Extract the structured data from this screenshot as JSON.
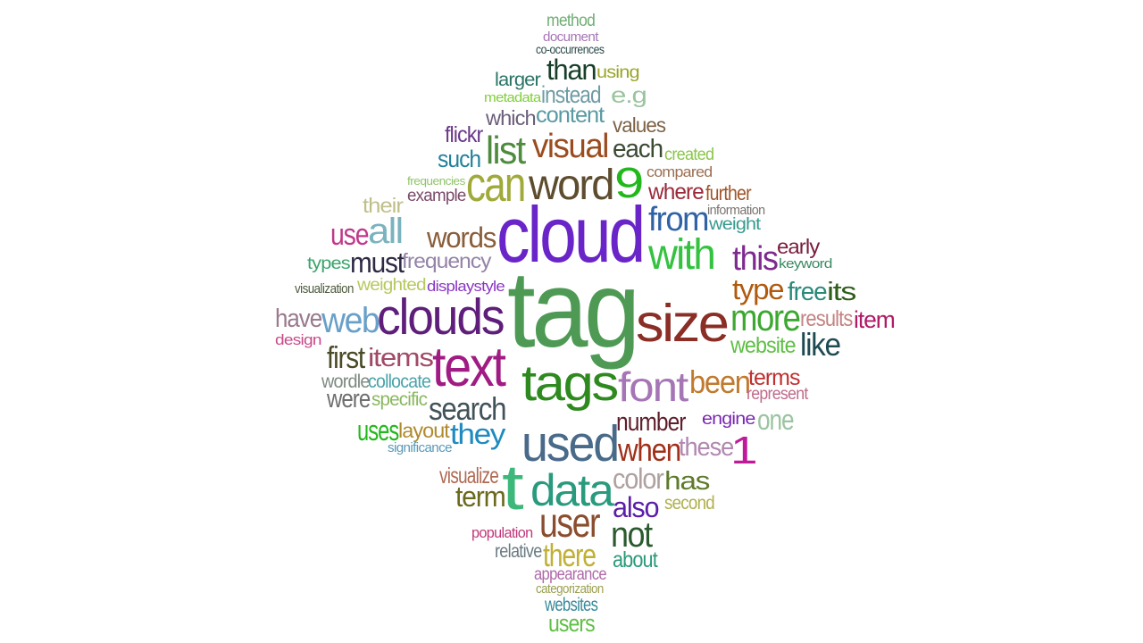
{
  "word_cloud": {
    "words": [
      {
        "text": "method",
        "color": "#6fae73"
      },
      {
        "text": "document",
        "color": "#a675b6"
      },
      {
        "text": "co-occurrences",
        "color": "#2b4a4a"
      },
      {
        "text": "than",
        "color": "#173f2a"
      },
      {
        "text": "using",
        "color": "#9aa52a"
      },
      {
        "text": "larger",
        "color": "#2a7566"
      },
      {
        "text": "metadata",
        "color": "#7fcf3a"
      },
      {
        "text": "instead",
        "color": "#6f9ba6"
      },
      {
        "text": "e.g",
        "color": "#9ac49e"
      },
      {
        "text": "which",
        "color": "#6b5e7b"
      },
      {
        "text": "content",
        "color": "#5a9aa2"
      },
      {
        "text": "values",
        "color": "#7c6146"
      },
      {
        "text": "flickr",
        "color": "#6a3a8a"
      },
      {
        "text": "list",
        "color": "#4e8b3e"
      },
      {
        "text": "visual",
        "color": "#9a4c1f"
      },
      {
        "text": "each",
        "color": "#3a4a33"
      },
      {
        "text": "created",
        "color": "#8bc64a"
      },
      {
        "text": "such",
        "color": "#24819a"
      },
      {
        "text": "can",
        "color": "#a0aa3a"
      },
      {
        "text": "word",
        "color": "#5e4c2e"
      },
      {
        "text": "9",
        "color": "#22b81d"
      },
      {
        "text": "compared",
        "color": "#9c6f52"
      },
      {
        "text": "frequencies",
        "color": "#91c46a"
      },
      {
        "text": "example",
        "color": "#7b4a6a"
      },
      {
        "text": "where",
        "color": "#9a2a3a"
      },
      {
        "text": "further",
        "color": "#a0552a"
      },
      {
        "text": "their",
        "color": "#bfbf8a"
      },
      {
        "text": "information",
        "color": "#7a7470"
      },
      {
        "text": "cloud",
        "color": "#6a25c8"
      },
      {
        "text": "from",
        "color": "#2f62a6"
      },
      {
        "text": "weight",
        "color": "#3a9a8f"
      },
      {
        "text": "use",
        "color": "#c0388a"
      },
      {
        "text": "all",
        "color": "#7ab3bf"
      },
      {
        "text": "words",
        "color": "#8a5e3a"
      },
      {
        "text": "with",
        "color": "#34c240"
      },
      {
        "text": "early",
        "color": "#7a1d3e"
      },
      {
        "text": "this",
        "color": "#7e2a8e"
      },
      {
        "text": "types",
        "color": "#3aa56a"
      },
      {
        "text": "must",
        "color": "#2f2a44"
      },
      {
        "text": "frequency",
        "color": "#9484a8"
      },
      {
        "text": "keyword",
        "color": "#3a8a63"
      },
      {
        "text": "visualization",
        "color": "#4e5b3e"
      },
      {
        "text": "weighted",
        "color": "#b8c860"
      },
      {
        "text": "displaystyle",
        "color": "#8a38c2"
      },
      {
        "text": "type",
        "color": "#b05a0e"
      },
      {
        "text": "free",
        "color": "#2a8a7a"
      },
      {
        "text": "its",
        "color": "#2e5e1a"
      },
      {
        "text": "tag",
        "color": "#4e9a55"
      },
      {
        "text": "have",
        "color": "#9a7a8e"
      },
      {
        "text": "web",
        "color": "#6aa0c8"
      },
      {
        "text": "clouds",
        "color": "#5e1e7a"
      },
      {
        "text": "size",
        "color": "#8a2e26"
      },
      {
        "text": "more",
        "color": "#3da830"
      },
      {
        "text": "results",
        "color": "#c48282"
      },
      {
        "text": "item",
        "color": "#b01a66"
      },
      {
        "text": "design",
        "color": "#c84a8a"
      },
      {
        "text": "website",
        "color": "#5fbf45"
      },
      {
        "text": "like",
        "color": "#1e4a52"
      },
      {
        "text": "first",
        "color": "#4a4a26"
      },
      {
        "text": "items",
        "color": "#a04a68"
      },
      {
        "text": "text",
        "color": "#a01c84"
      },
      {
        "text": "wordle",
        "color": "#7e8a82"
      },
      {
        "text": "collocate",
        "color": "#4aa3a8"
      },
      {
        "text": "tags",
        "color": "#2e8a1f"
      },
      {
        "text": "font",
        "color": "#a675b6"
      },
      {
        "text": "been",
        "color": "#c07a2e"
      },
      {
        "text": "terms",
        "color": "#c03030"
      },
      {
        "text": "represent",
        "color": "#c06a8a"
      },
      {
        "text": "were",
        "color": "#6e6e6e"
      },
      {
        "text": "specific",
        "color": "#8ab860"
      },
      {
        "text": "search",
        "color": "#42525a"
      },
      {
        "text": "number",
        "color": "#5e1e2a"
      },
      {
        "text": "engine",
        "color": "#7a28b0"
      },
      {
        "text": "one",
        "color": "#9cc4a2"
      },
      {
        "text": "uses",
        "color": "#22b81d"
      },
      {
        "text": "layout",
        "color": "#b08a2e"
      },
      {
        "text": "they",
        "color": "#1e8ac0"
      },
      {
        "text": "used",
        "color": "#4a6a8a"
      },
      {
        "text": "when",
        "color": "#a0301a"
      },
      {
        "text": "these",
        "color": "#b088b0"
      },
      {
        "text": "1",
        "color": "#c01a9a"
      },
      {
        "text": "significance",
        "color": "#5a9ab8"
      },
      {
        "text": "visualize",
        "color": "#b06a52"
      },
      {
        "text": "t",
        "color": "#3db87a"
      },
      {
        "text": "data",
        "color": "#2a9a7e"
      },
      {
        "text": "color",
        "color": "#b0a0a0"
      },
      {
        "text": "has",
        "color": "#5e7a2a"
      },
      {
        "text": "term",
        "color": "#6a6a1e"
      },
      {
        "text": "also",
        "color": "#5a1ea8"
      },
      {
        "text": "second",
        "color": "#b0b050"
      },
      {
        "text": "user",
        "color": "#8a4e2e"
      },
      {
        "text": "population",
        "color": "#c0387a"
      },
      {
        "text": "not",
        "color": "#2a5a2e"
      },
      {
        "text": "relative",
        "color": "#6a7a82"
      },
      {
        "text": "there",
        "color": "#c0b035"
      },
      {
        "text": "about",
        "color": "#2a9a7a"
      },
      {
        "text": "appearance",
        "color": "#b06aa8"
      },
      {
        "text": "categorization",
        "color": "#9aa050"
      },
      {
        "text": "websites",
        "color": "#3a8a9a"
      },
      {
        "text": "users",
        "color": "#5fbf45"
      }
    ]
  }
}
